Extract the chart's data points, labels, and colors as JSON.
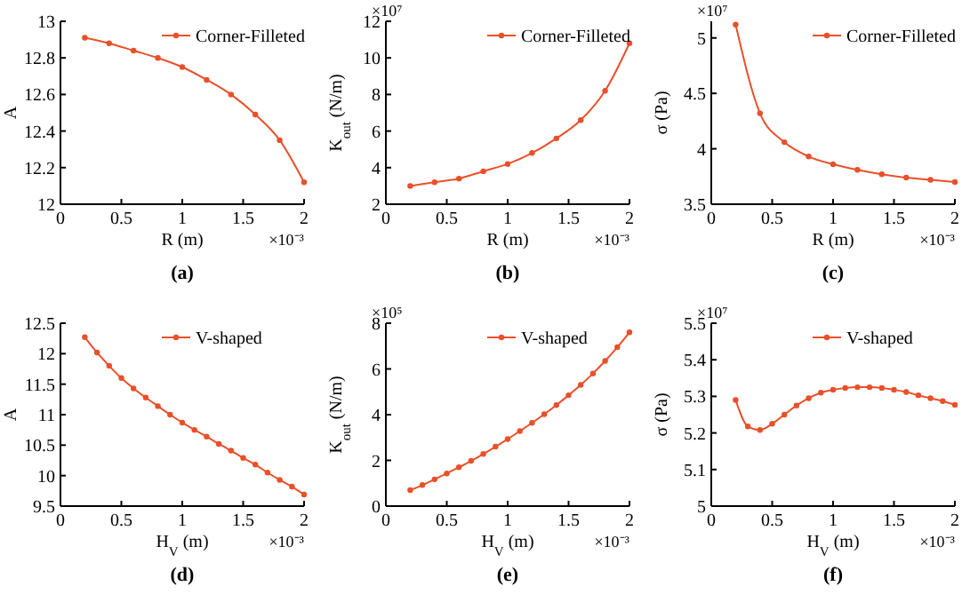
{
  "chart_data": [
    {
      "type": "line",
      "xlabel": "R (m)",
      "ylabel": "A",
      "x": [
        0.2,
        0.4,
        0.6,
        0.8,
        1,
        1.2,
        1.4,
        1.6,
        1.8,
        2
      ],
      "xlim": [
        0,
        2
      ],
      "xticks": [
        0,
        0.5,
        1,
        1.5,
        2
      ],
      "ylim": [
        12,
        13
      ],
      "yticks": [
        12,
        12.2,
        12.4,
        12.6,
        12.8,
        13
      ],
      "legend": "top right",
      "marker": "circle",
      "annotations": [
        "×10⁻³",
        "(a)"
      ],
      "series": [
        {
          "name": "Corner-Filleted",
          "color": "#e8502a",
          "values": [
            12.91,
            12.88,
            12.84,
            12.8,
            12.75,
            12.68,
            12.6,
            12.49,
            12.35,
            12.12
          ]
        }
      ]
    },
    {
      "type": "line",
      "xlabel": "R (m)",
      "ylabel": "K$_{out}$ (N/m)",
      "x": [
        0.2,
        0.4,
        0.6,
        0.8,
        1,
        1.2,
        1.4,
        1.6,
        1.8,
        2
      ],
      "xlim": [
        0,
        2
      ],
      "xticks": [
        0,
        0.5,
        1,
        1.5,
        2
      ],
      "ylim": [
        2,
        12
      ],
      "yticks": [
        2,
        4,
        6,
        8,
        10,
        12
      ],
      "legend": "top right",
      "marker": "circle",
      "annotations": [
        "×10⁻³",
        "×10⁷",
        "(b)"
      ],
      "series": [
        {
          "name": "Corner-Filleted",
          "color": "#e8502a",
          "values": [
            3.0,
            3.2,
            3.4,
            3.8,
            4.2,
            4.8,
            5.6,
            6.6,
            8.2,
            10.8
          ]
        }
      ]
    },
    {
      "type": "line",
      "xlabel": "R (m)",
      "ylabel": "σ (Pa)",
      "x": [
        0.2,
        0.4,
        0.6,
        0.8,
        1,
        1.2,
        1.4,
        1.6,
        1.8,
        2
      ],
      "xlim": [
        0,
        2
      ],
      "xticks": [
        0,
        0.5,
        1,
        1.5,
        2
      ],
      "ylim": [
        3.5,
        5.15
      ],
      "yticks": [
        3.5,
        4,
        4.5,
        5
      ],
      "legend": "top right",
      "marker": "circle",
      "annotations": [
        "×10⁻³",
        "×10⁷",
        "(c)"
      ],
      "series": [
        {
          "name": "Corner-Filleted",
          "color": "#e8502a",
          "values": [
            5.12,
            4.32,
            4.06,
            3.93,
            3.86,
            3.81,
            3.77,
            3.74,
            3.72,
            3.7
          ]
        }
      ]
    },
    {
      "type": "line",
      "xlabel": "H$_{V}$ (m)",
      "ylabel": "A",
      "x": [
        0.2,
        0.3,
        0.4,
        0.5,
        0.6,
        0.7,
        0.8,
        0.9,
        1,
        1.1,
        1.2,
        1.3,
        1.4,
        1.5,
        1.6,
        1.7,
        1.8,
        1.9,
        2
      ],
      "xlim": [
        0,
        2
      ],
      "xticks": [
        0,
        0.5,
        1,
        1.5,
        2
      ],
      "ylim": [
        9.5,
        12.5
      ],
      "yticks": [
        9.5,
        10,
        10.5,
        11,
        11.5,
        12,
        12.5
      ],
      "legend": "top right",
      "marker": "circle",
      "annotations": [
        "×10⁻³",
        "(d)"
      ],
      "series": [
        {
          "name": "V-shaped",
          "color": "#e8502a",
          "values": [
            12.27,
            12.02,
            11.8,
            11.6,
            11.43,
            11.28,
            11.14,
            11.0,
            10.87,
            10.75,
            10.64,
            10.52,
            10.41,
            10.29,
            10.18,
            10.05,
            9.93,
            9.82,
            9.69
          ]
        }
      ]
    },
    {
      "type": "line",
      "xlabel": "H$_{V}$ (m)",
      "ylabel": "K$_{out}$ (N/m)",
      "x": [
        0.2,
        0.3,
        0.4,
        0.5,
        0.6,
        0.7,
        0.8,
        0.9,
        1,
        1.1,
        1.2,
        1.3,
        1.4,
        1.5,
        1.6,
        1.7,
        1.8,
        1.9,
        2
      ],
      "xlim": [
        0,
        2
      ],
      "xticks": [
        0,
        0.5,
        1,
        1.5,
        2
      ],
      "ylim": [
        0,
        8
      ],
      "yticks": [
        0,
        2,
        4,
        6,
        8
      ],
      "legend": "top right",
      "marker": "circle",
      "annotations": [
        "×10⁻³",
        "×10⁵",
        "(e)"
      ],
      "series": [
        {
          "name": "V-shaped",
          "color": "#e8502a",
          "values": [
            0.7,
            0.92,
            1.17,
            1.43,
            1.7,
            1.98,
            2.28,
            2.6,
            2.93,
            3.28,
            3.64,
            4.02,
            4.42,
            4.85,
            5.3,
            5.8,
            6.35,
            6.95,
            7.6
          ]
        }
      ]
    },
    {
      "type": "line",
      "xlabel": "H$_{V}$ (m)",
      "ylabel": "σ (Pa)",
      "x": [
        0.2,
        0.3,
        0.4,
        0.5,
        0.6,
        0.7,
        0.8,
        0.9,
        1,
        1.1,
        1.2,
        1.3,
        1.4,
        1.5,
        1.6,
        1.7,
        1.8,
        1.9,
        2
      ],
      "xlim": [
        0,
        2
      ],
      "xticks": [
        0,
        0.5,
        1,
        1.5,
        2
      ],
      "ylim": [
        5,
        5.5
      ],
      "yticks": [
        5,
        5.1,
        5.2,
        5.3,
        5.4,
        5.5
      ],
      "legend": "top right",
      "marker": "circle",
      "annotations": [
        "×10⁻³",
        "×10⁷",
        "(f)"
      ],
      "series": [
        {
          "name": "V-shaped",
          "color": "#e8502a",
          "values": [
            5.29,
            5.218,
            5.208,
            5.225,
            5.25,
            5.275,
            5.295,
            5.31,
            5.318,
            5.323,
            5.325,
            5.325,
            5.323,
            5.318,
            5.312,
            5.303,
            5.295,
            5.287,
            5.277
          ]
        }
      ]
    }
  ]
}
